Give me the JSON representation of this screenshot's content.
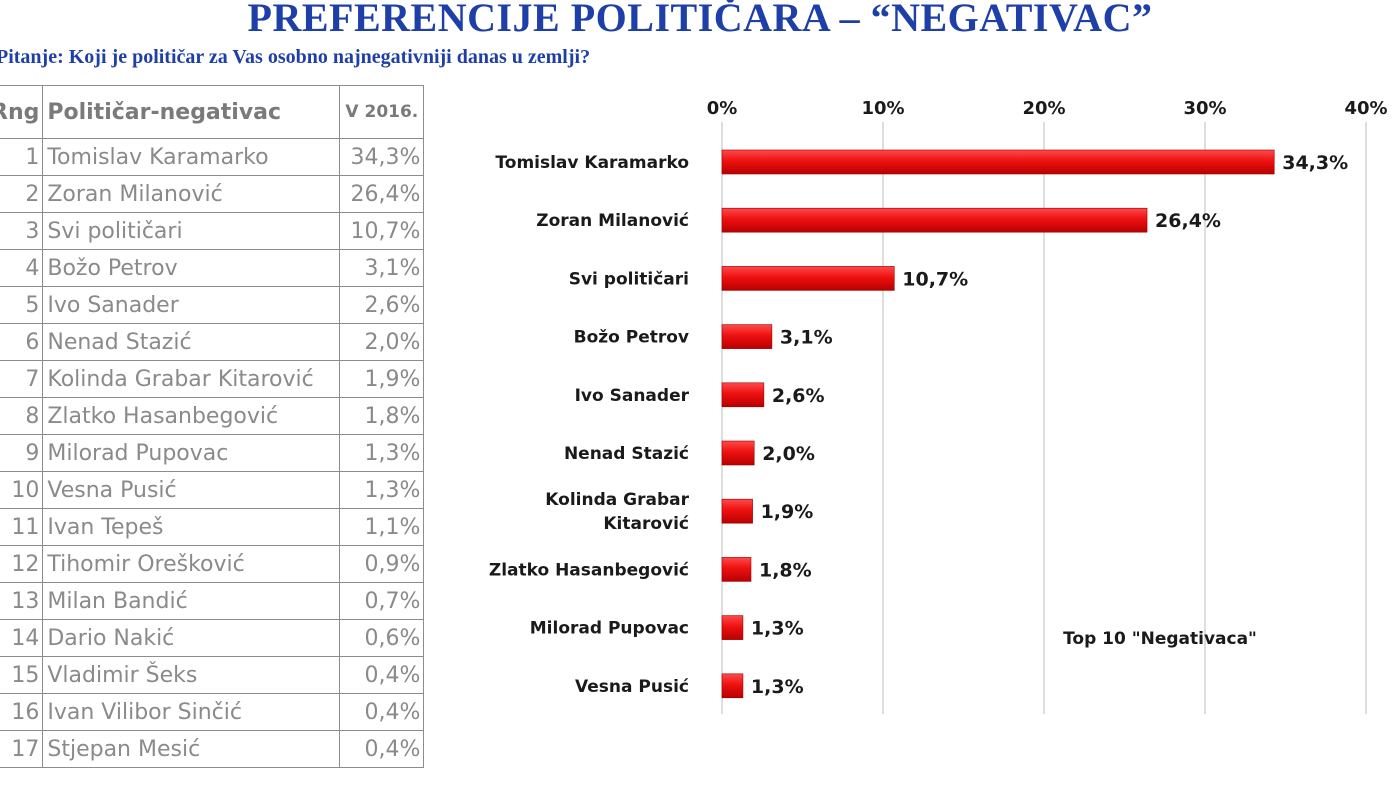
{
  "header": {
    "title": "PREFERENCIJE POLITIČARA – “NEGATIVAC”",
    "question": "Pitanje: Koji je političar za Vas osobno najnegativniji danas u zemlji?"
  },
  "table": {
    "headers": [
      "Rng",
      "Političar-negativac",
      "V 2016."
    ],
    "rows": [
      {
        "rank": "1",
        "name": "Tomislav Karamarko",
        "value": "34,3%"
      },
      {
        "rank": "2",
        "name": "Zoran Milanović",
        "value": "26,4%"
      },
      {
        "rank": "3",
        "name": "Svi političari",
        "value": "10,7%"
      },
      {
        "rank": "4",
        "name": "Božo Petrov",
        "value": "3,1%"
      },
      {
        "rank": "5",
        "name": "Ivo Sanader",
        "value": "2,6%"
      },
      {
        "rank": "6",
        "name": "Nenad Stazić",
        "value": "2,0%"
      },
      {
        "rank": "7",
        "name": "Kolinda Grabar Kitarović",
        "value": "1,9%"
      },
      {
        "rank": "8",
        "name": "Zlatko Hasanbegović",
        "value": "1,8%"
      },
      {
        "rank": "9",
        "name": "Milorad Pupovac",
        "value": "1,3%"
      },
      {
        "rank": "10",
        "name": "Vesna Pusić",
        "value": "1,3%"
      },
      {
        "rank": "11",
        "name": "Ivan Tepeš",
        "value": "1,1%"
      },
      {
        "rank": "12",
        "name": "Tihomir Orešković",
        "value": "0,9%"
      },
      {
        "rank": "13",
        "name": "Milan Bandić",
        "value": "0,7%"
      },
      {
        "rank": "14",
        "name": "Dario Nakić",
        "value": "0,6%"
      },
      {
        "rank": "15",
        "name": "Vladimir Šeks",
        "value": "0,4%"
      },
      {
        "rank": "16",
        "name": "Ivan Vilibor Sinčić",
        "value": "0,4%"
      },
      {
        "rank": "17",
        "name": "Stjepan Mesić",
        "value": "0,4%"
      }
    ]
  },
  "chart_data": {
    "type": "bar",
    "orientation": "horizontal",
    "annotation": "Top 10 \"Negativaca\"",
    "categories": [
      "Tomislav Karamarko",
      "Zoran Milanović",
      "Svi političari",
      "Božo Petrov",
      "Ivo Sanader",
      "Nenad Stazić",
      "Kolinda Grabar Kitarović",
      "Zlatko Hasanbegović",
      "Milorad Pupovac",
      "Vesna Pusić"
    ],
    "category_labels": [
      [
        "Tomislav Karamarko"
      ],
      [
        "Zoran Milanović"
      ],
      [
        "Svi političari"
      ],
      [
        "Božo Petrov"
      ],
      [
        "Ivo Sanader"
      ],
      [
        "Nenad Stazić"
      ],
      [
        "Kolinda Grabar",
        "Kitarović"
      ],
      [
        "Zlatko Hasanbegović"
      ],
      [
        "Milorad Pupovac"
      ],
      [
        "Vesna Pusić"
      ]
    ],
    "values": [
      34.3,
      26.4,
      10.7,
      3.1,
      2.6,
      2.0,
      1.9,
      1.8,
      1.3,
      1.3
    ],
    "value_labels": [
      "34,3%",
      "26,4%",
      "10,7%",
      "3,1%",
      "2,6%",
      "2,0%",
      "1,9%",
      "1,8%",
      "1,3%",
      "1,3%"
    ],
    "xlim": [
      0,
      40
    ],
    "x_ticks": [
      0,
      10,
      20,
      30,
      40
    ],
    "x_tick_labels": [
      "0%",
      "10%",
      "20%",
      "30%",
      "40%"
    ],
    "x_axis_position": "top",
    "grid": true,
    "legend": "none",
    "bar_color": "#ee1111"
  }
}
